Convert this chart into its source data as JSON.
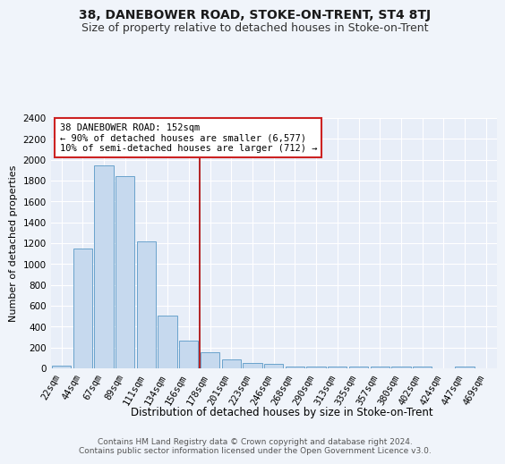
{
  "title": "38, DANEBOWER ROAD, STOKE-ON-TRENT, ST4 8TJ",
  "subtitle": "Size of property relative to detached houses in Stoke-on-Trent",
  "xlabel": "Distribution of detached houses by size in Stoke-on-Trent",
  "ylabel": "Number of detached properties",
  "categories": [
    "22sqm",
    "44sqm",
    "67sqm",
    "89sqm",
    "111sqm",
    "134sqm",
    "156sqm",
    "178sqm",
    "201sqm",
    "223sqm",
    "246sqm",
    "268sqm",
    "290sqm",
    "313sqm",
    "335sqm",
    "357sqm",
    "380sqm",
    "402sqm",
    "424sqm",
    "447sqm",
    "469sqm"
  ],
  "values": [
    30,
    1150,
    1950,
    1840,
    1220,
    510,
    270,
    155,
    90,
    50,
    40,
    20,
    15,
    15,
    15,
    15,
    15,
    20,
    5,
    20,
    0
  ],
  "bar_color": "#c6d9ee",
  "bar_edge_color": "#6aa3cc",
  "vline_x": 6.5,
  "vline_color": "#aa0000",
  "annotation_text": "38 DANEBOWER ROAD: 152sqm\n← 90% of detached houses are smaller (6,577)\n10% of semi-detached houses are larger (712) →",
  "annotation_box_color": "#ffffff",
  "annotation_border_color": "#cc2222",
  "ylim": [
    0,
    2400
  ],
  "yticks": [
    0,
    200,
    400,
    600,
    800,
    1000,
    1200,
    1400,
    1600,
    1800,
    2000,
    2200,
    2400
  ],
  "footer": "Contains HM Land Registry data © Crown copyright and database right 2024.\nContains public sector information licensed under the Open Government Licence v3.0.",
  "bg_color": "#f0f4fa",
  "plot_bg_color": "#e8eef8",
  "title_fontsize": 10,
  "subtitle_fontsize": 9,
  "xlabel_fontsize": 8.5,
  "ylabel_fontsize": 8,
  "tick_fontsize": 7.5,
  "annot_fontsize": 7.5,
  "footer_fontsize": 6.5
}
